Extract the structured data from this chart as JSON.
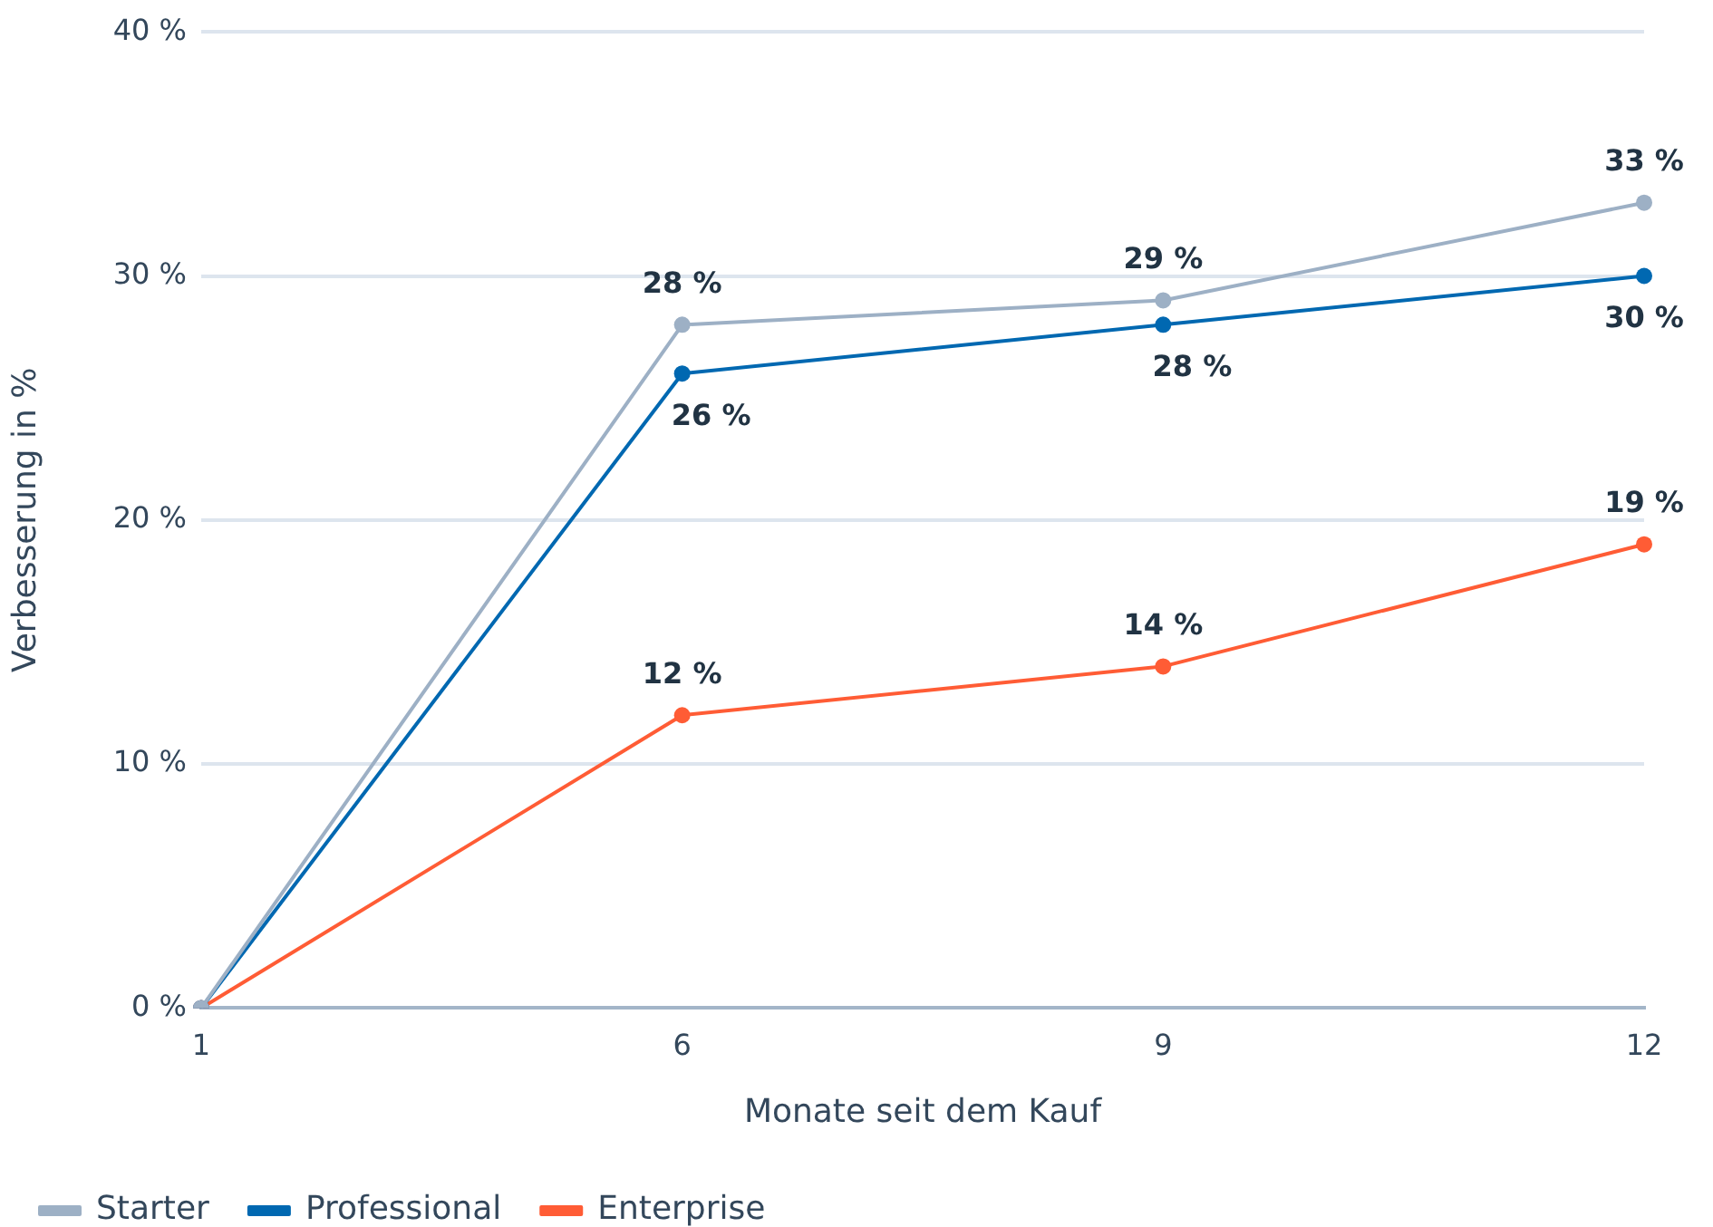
{
  "chart_data": {
    "type": "line",
    "xlabel": "Monate seit dem Kauf",
    "ylabel": "Verbesserung in %",
    "categories": [
      "1",
      "6",
      "9",
      "12"
    ],
    "series": [
      {
        "name": "Starter",
        "color": "#9db0c5",
        "values": [
          0,
          28,
          29,
          33
        ],
        "value_labels": [
          null,
          "28 %",
          "29 %",
          "33 %"
        ]
      },
      {
        "name": "Professional",
        "color": "#0068b1",
        "values": [
          0,
          26,
          28,
          30
        ],
        "value_labels": [
          null,
          "26 %",
          "28 %",
          "30 %"
        ]
      },
      {
        "name": "Enterprise",
        "color": "#ff5c35",
        "values": [
          0,
          12,
          14,
          19
        ],
        "value_labels": [
          null,
          "12 %",
          "14 %",
          "19 %"
        ]
      }
    ],
    "ylim": [
      0,
      40
    ],
    "yticks": [
      {
        "value": 0,
        "label": "0 %"
      },
      {
        "value": 10,
        "label": "10 %"
      },
      {
        "value": 20,
        "label": "20 %"
      },
      {
        "value": 30,
        "label": "30 %"
      },
      {
        "value": 40,
        "label": "40 %"
      }
    ],
    "grid": "y",
    "legend": "bottom left",
    "marker": "circle",
    "line_style": "solid"
  }
}
